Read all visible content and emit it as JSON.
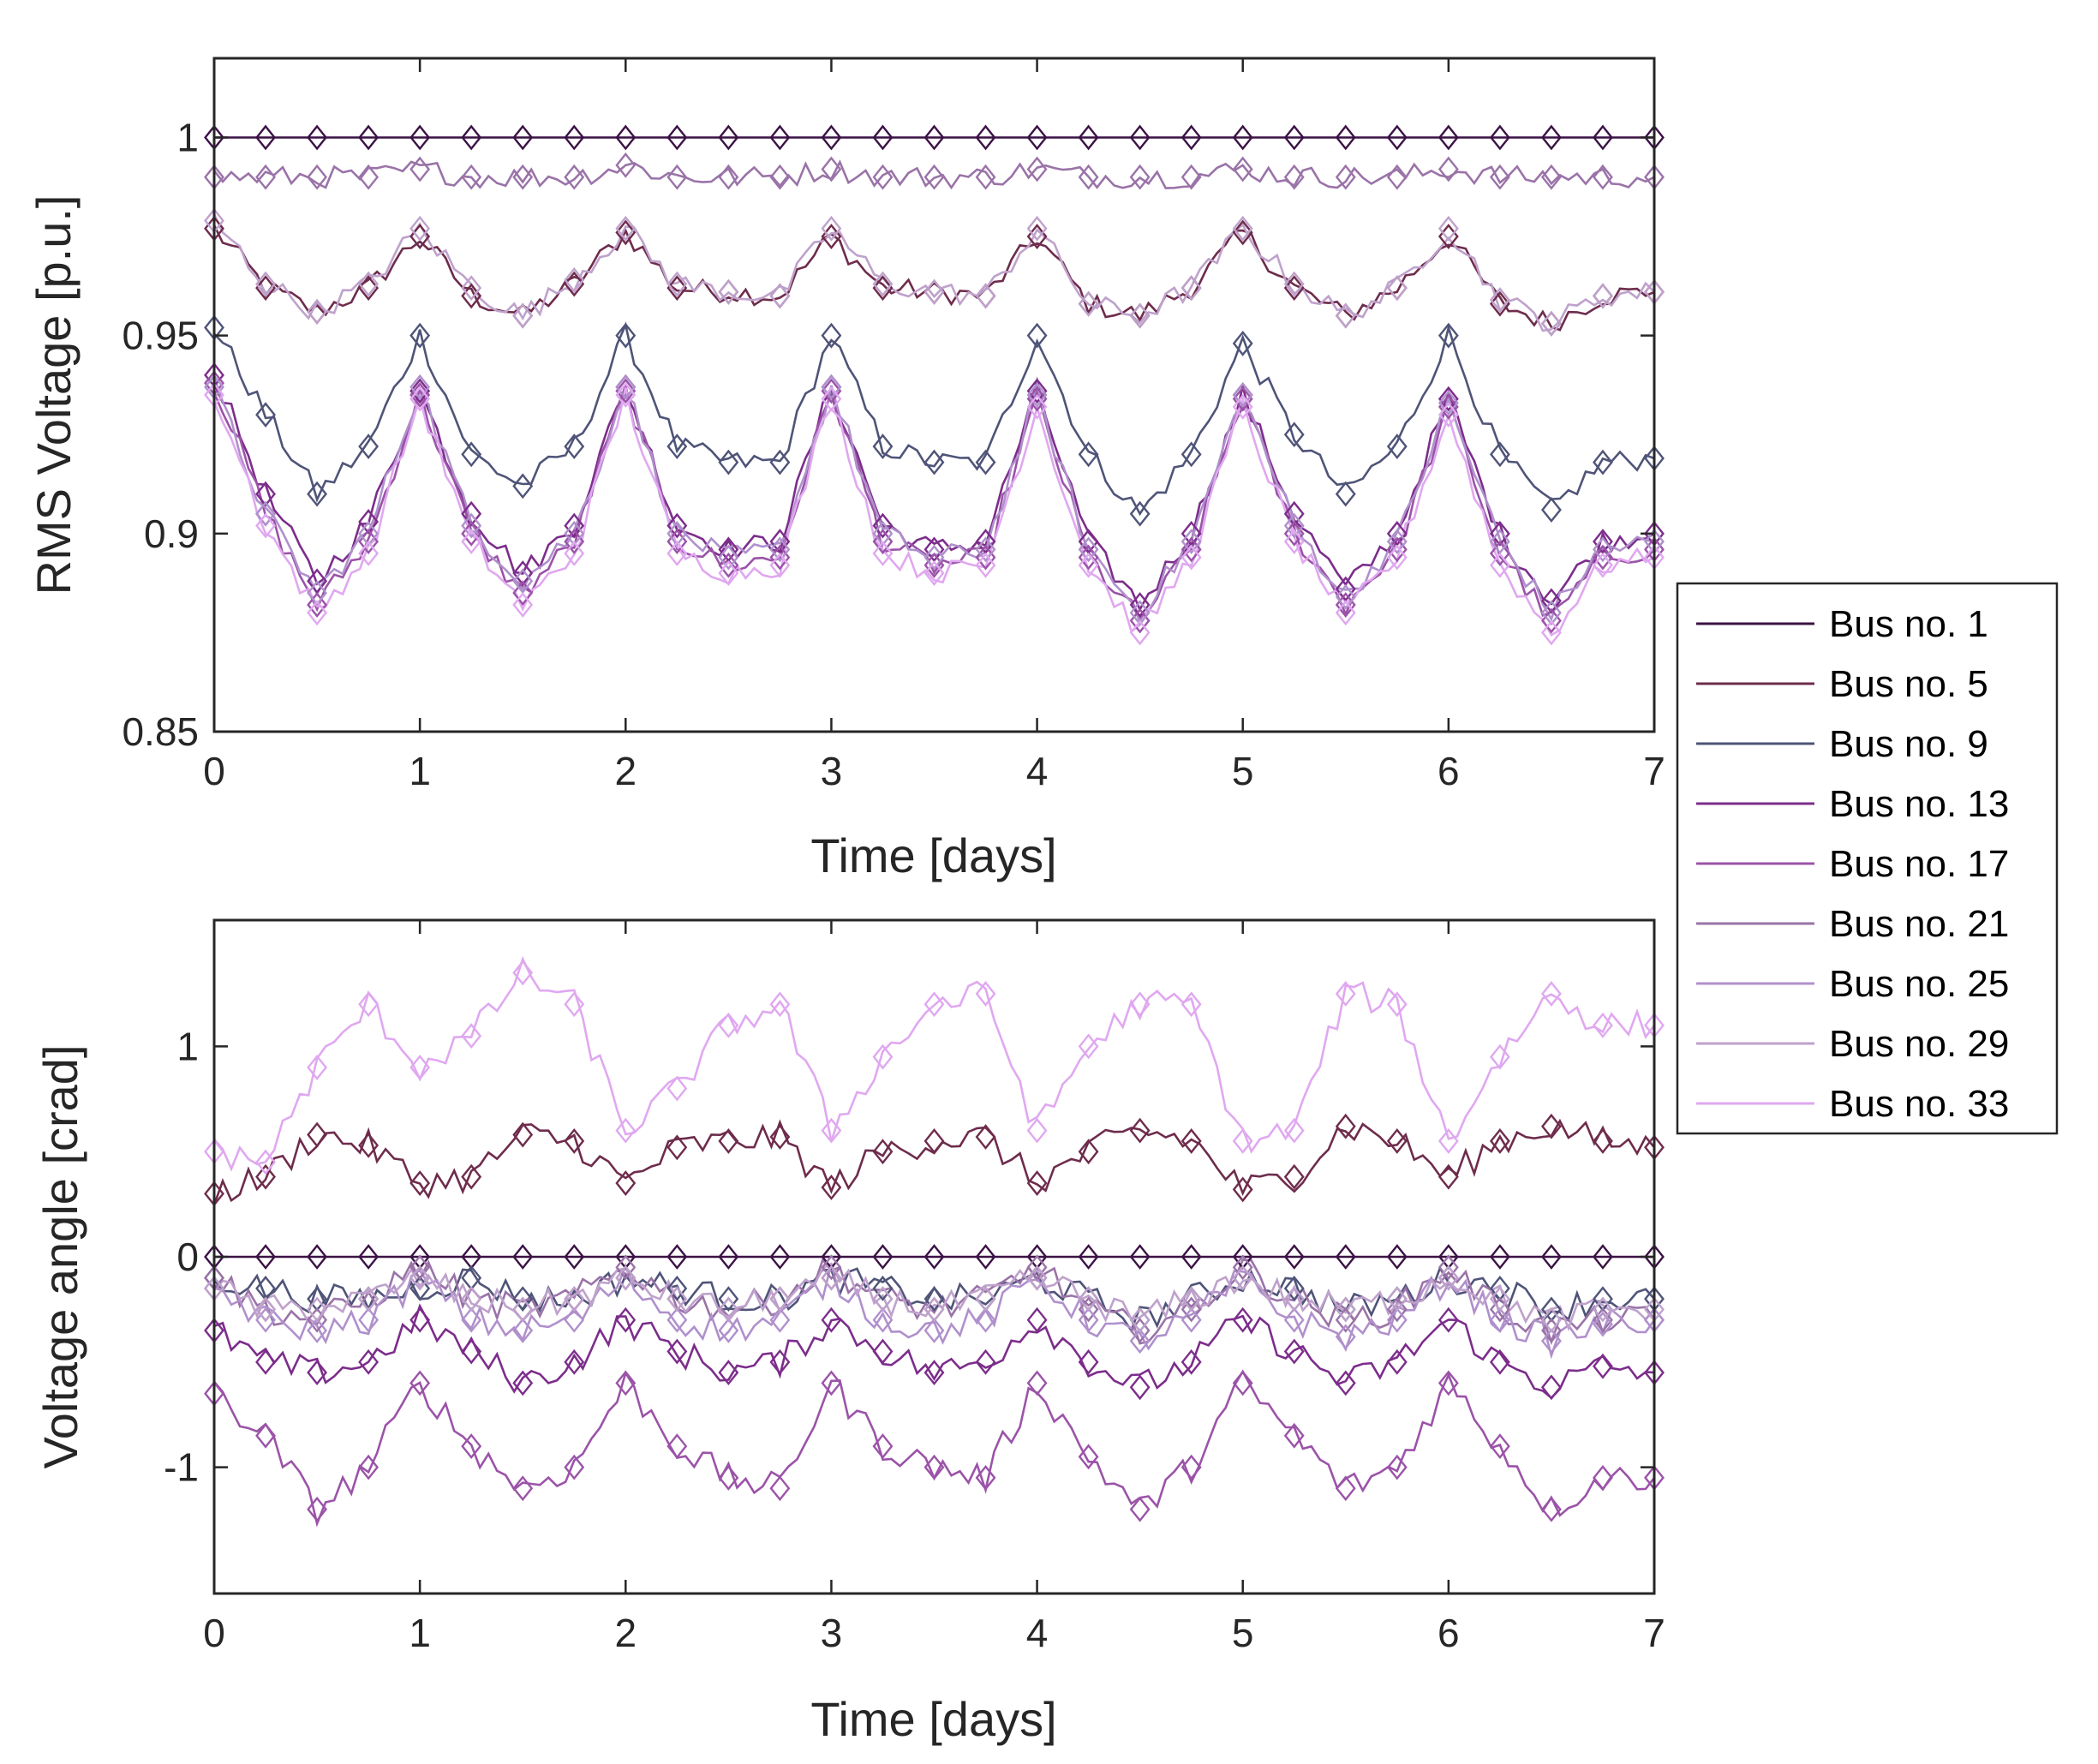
{
  "colors": {
    "bus1": "#3b1245",
    "bus5": "#6e2c4c",
    "bus9": "#4f5478",
    "bus13": "#7c2d8b",
    "bus17": "#9b53a8",
    "bus21": "#9a73a8",
    "bus25": "#b090cc",
    "bus29": "#bfa2cc",
    "bus33": "#e0a8f0"
  },
  "legend": {
    "entries": [
      "Bus no. 1",
      "Bus no. 5",
      "Bus no. 9",
      "Bus no. 13",
      "Bus no. 17",
      "Bus no. 21",
      "Bus no. 25",
      "Bus no. 29",
      "Bus no. 33"
    ],
    "placement": "right, between the two panels"
  },
  "chart_data": [
    {
      "type": "line",
      "title": "",
      "xlabel": "Time [days]",
      "ylabel": "RMS Voltage [p.u.]",
      "xlim": [
        0,
        7
      ],
      "ylim": [
        0.85,
        1.02
      ],
      "xticks": [
        "0",
        "1",
        "2",
        "3",
        "4",
        "5",
        "6",
        "7"
      ],
      "yticks": [
        "0.85",
        "0.9",
        "0.95",
        "1"
      ],
      "ytick_values": [
        0.85,
        0.9,
        0.95,
        1.0
      ],
      "marker": "diamond",
      "series": [
        {
          "name": "Bus no. 1",
          "color_key": "bus1",
          "y": [
            1.0,
            1.0,
            1.0,
            1.0,
            1.0,
            1.0,
            1.0,
            1.0,
            1.0,
            1.0,
            1.0,
            1.0,
            1.0,
            1.0,
            1.0,
            1.0,
            1.0,
            1.0,
            1.0,
            1.0,
            1.0,
            1.0,
            1.0,
            1.0,
            1.0,
            1.0,
            1.0,
            1.0,
            1.0
          ]
        },
        {
          "name": "Bus no. 5",
          "color_key": "bus5",
          "y": [
            0.977,
            0.962,
            0.956,
            0.962,
            0.975,
            0.96,
            0.955,
            0.963,
            0.976,
            0.962,
            0.961,
            0.96,
            0.975,
            0.962,
            0.961,
            0.96,
            0.975,
            0.958,
            0.955,
            0.962,
            0.976,
            0.962,
            0.955,
            0.962,
            0.975,
            0.958,
            0.953,
            0.96,
            0.961
          ]
        },
        {
          "name": "Bus no. 9",
          "color_key": "bus9",
          "y": [
            0.952,
            0.93,
            0.91,
            0.922,
            0.95,
            0.92,
            0.912,
            0.922,
            0.95,
            0.922,
            0.918,
            0.918,
            0.95,
            0.922,
            0.918,
            0.918,
            0.95,
            0.92,
            0.905,
            0.92,
            0.948,
            0.925,
            0.91,
            0.922,
            0.95,
            0.92,
            0.906,
            0.918,
            0.919
          ]
        },
        {
          "name": "Bus no. 13",
          "color_key": "bus13",
          "y": [
            0.94,
            0.91,
            0.888,
            0.903,
            0.936,
            0.905,
            0.89,
            0.902,
            0.937,
            0.902,
            0.896,
            0.898,
            0.937,
            0.902,
            0.896,
            0.898,
            0.936,
            0.898,
            0.882,
            0.9,
            0.935,
            0.905,
            0.886,
            0.9,
            0.934,
            0.9,
            0.883,
            0.898,
            0.9
          ]
        },
        {
          "name": "Bus no. 17",
          "color_key": "bus17",
          "y": [
            0.938,
            0.905,
            0.882,
            0.898,
            0.935,
            0.9,
            0.885,
            0.898,
            0.936,
            0.898,
            0.892,
            0.894,
            0.936,
            0.898,
            0.892,
            0.894,
            0.934,
            0.894,
            0.878,
            0.896,
            0.934,
            0.9,
            0.882,
            0.896,
            0.932,
            0.895,
            0.878,
            0.894,
            0.896
          ]
        },
        {
          "name": "Bus no. 21",
          "color_key": "bus21",
          "y": [
            0.99,
            0.99,
            0.99,
            0.99,
            0.992,
            0.99,
            0.99,
            0.99,
            0.993,
            0.99,
            0.99,
            0.99,
            0.992,
            0.99,
            0.99,
            0.99,
            0.992,
            0.99,
            0.99,
            0.99,
            0.992,
            0.99,
            0.99,
            0.99,
            0.992,
            0.99,
            0.99,
            0.99,
            0.99
          ]
        },
        {
          "name": "Bus no. 25",
          "color_key": "bus25",
          "y": [
            0.937,
            0.905,
            0.885,
            0.9,
            0.937,
            0.902,
            0.888,
            0.9,
            0.937,
            0.9,
            0.894,
            0.896,
            0.937,
            0.9,
            0.894,
            0.896,
            0.935,
            0.896,
            0.88,
            0.898,
            0.935,
            0.902,
            0.884,
            0.898,
            0.933,
            0.898,
            0.88,
            0.896,
            0.898
          ]
        },
        {
          "name": "Bus no. 29",
          "color_key": "bus29",
          "y": [
            0.979,
            0.963,
            0.956,
            0.963,
            0.977,
            0.962,
            0.955,
            0.964,
            0.977,
            0.963,
            0.961,
            0.96,
            0.977,
            0.963,
            0.961,
            0.96,
            0.977,
            0.958,
            0.955,
            0.962,
            0.977,
            0.963,
            0.955,
            0.962,
            0.977,
            0.959,
            0.953,
            0.96,
            0.961
          ]
        },
        {
          "name": "Bus no. 33",
          "color_key": "bus33",
          "y": [
            0.935,
            0.902,
            0.88,
            0.895,
            0.934,
            0.898,
            0.882,
            0.895,
            0.935,
            0.895,
            0.89,
            0.892,
            0.934,
            0.895,
            0.89,
            0.892,
            0.932,
            0.892,
            0.875,
            0.894,
            0.932,
            0.898,
            0.88,
            0.894,
            0.93,
            0.892,
            0.875,
            0.892,
            0.894
          ]
        }
      ]
    },
    {
      "type": "line",
      "title": "",
      "xlabel": "Time [days]",
      "ylabel": "Voltage angle [crad]",
      "xlim": [
        0,
        7
      ],
      "ylim": [
        -1.6,
        1.6
      ],
      "xticks": [
        "0",
        "1",
        "2",
        "3",
        "4",
        "5",
        "6",
        "7"
      ],
      "yticks": [
        "-1",
        "0",
        "1"
      ],
      "ytick_values": [
        -1,
        0,
        1
      ],
      "marker": "diamond",
      "series": [
        {
          "name": "Bus no. 1",
          "color_key": "bus1",
          "y": [
            0,
            0,
            0,
            0,
            0,
            0,
            0,
            0,
            0,
            0,
            0,
            0,
            0,
            0,
            0,
            0,
            0,
            0,
            0,
            0,
            0,
            0,
            0,
            0,
            0,
            0,
            0,
            0,
            0
          ]
        },
        {
          "name": "Bus no. 5",
          "color_key": "bus5",
          "y": [
            0.3,
            0.38,
            0.58,
            0.53,
            0.35,
            0.38,
            0.58,
            0.55,
            0.35,
            0.52,
            0.55,
            0.57,
            0.33,
            0.5,
            0.55,
            0.57,
            0.35,
            0.5,
            0.6,
            0.55,
            0.32,
            0.38,
            0.62,
            0.55,
            0.38,
            0.55,
            0.62,
            0.55,
            0.52
          ]
        },
        {
          "name": "Bus no. 9",
          "color_key": "bus9",
          "y": [
            -0.1,
            -0.15,
            -0.2,
            -0.2,
            -0.15,
            -0.1,
            -0.2,
            -0.2,
            -0.1,
            -0.15,
            -0.2,
            -0.2,
            -0.1,
            -0.15,
            -0.2,
            -0.2,
            -0.1,
            -0.2,
            -0.3,
            -0.2,
            -0.1,
            -0.15,
            -0.25,
            -0.2,
            -0.1,
            -0.15,
            -0.25,
            -0.2,
            -0.2
          ]
        },
        {
          "name": "Bus no. 13",
          "color_key": "bus13",
          "y": [
            -0.35,
            -0.5,
            -0.55,
            -0.5,
            -0.3,
            -0.45,
            -0.6,
            -0.5,
            -0.3,
            -0.45,
            -0.55,
            -0.5,
            -0.3,
            -0.45,
            -0.55,
            -0.5,
            -0.3,
            -0.5,
            -0.62,
            -0.5,
            -0.3,
            -0.45,
            -0.6,
            -0.5,
            -0.3,
            -0.5,
            -0.62,
            -0.52,
            -0.55
          ]
        },
        {
          "name": "Bus no. 17",
          "color_key": "bus17",
          "y": [
            -0.65,
            -0.85,
            -1.2,
            -1.0,
            -0.6,
            -0.9,
            -1.1,
            -1.0,
            -0.6,
            -0.9,
            -1.05,
            -1.1,
            -0.6,
            -0.9,
            -1.0,
            -1.05,
            -0.6,
            -0.95,
            -1.2,
            -1.0,
            -0.6,
            -0.85,
            -1.1,
            -1.0,
            -0.6,
            -0.9,
            -1.2,
            -1.05,
            -1.05
          ]
        },
        {
          "name": "Bus no. 21",
          "color_key": "bus21",
          "y": [
            -0.1,
            -0.25,
            -0.3,
            -0.2,
            -0.05,
            -0.2,
            -0.25,
            -0.2,
            -0.05,
            -0.2,
            -0.25,
            -0.2,
            -0.05,
            -0.2,
            -0.25,
            -0.2,
            -0.05,
            -0.25,
            -0.35,
            -0.25,
            -0.05,
            -0.2,
            -0.3,
            -0.25,
            -0.05,
            -0.25,
            -0.35,
            -0.3,
            -0.3
          ]
        },
        {
          "name": "Bus no. 25",
          "color_key": "bus25",
          "y": [
            -0.15,
            -0.3,
            -0.35,
            -0.3,
            -0.1,
            -0.3,
            -0.35,
            -0.3,
            -0.1,
            -0.3,
            -0.35,
            -0.3,
            -0.1,
            -0.3,
            -0.35,
            -0.3,
            -0.1,
            -0.3,
            -0.4,
            -0.3,
            -0.1,
            -0.3,
            -0.38,
            -0.3,
            -0.1,
            -0.3,
            -0.4,
            -0.32,
            -0.3
          ]
        },
        {
          "name": "Bus no. 29",
          "color_key": "bus29",
          "y": [
            -0.15,
            -0.25,
            -0.25,
            -0.2,
            -0.1,
            -0.2,
            -0.25,
            -0.2,
            -0.1,
            -0.2,
            -0.25,
            -0.2,
            -0.1,
            -0.2,
            -0.25,
            -0.2,
            -0.1,
            -0.2,
            -0.3,
            -0.2,
            -0.1,
            -0.2,
            -0.25,
            -0.2,
            -0.1,
            -0.2,
            -0.3,
            -0.25,
            -0.25
          ]
        },
        {
          "name": "Bus no. 33",
          "color_key": "bus33",
          "y": [
            0.5,
            0.45,
            0.9,
            1.2,
            0.9,
            1.05,
            1.35,
            1.2,
            0.6,
            0.8,
            1.1,
            1.2,
            0.6,
            0.95,
            1.2,
            1.25,
            0.6,
            1.0,
            1.2,
            1.2,
            0.55,
            0.6,
            1.25,
            1.2,
            0.55,
            0.95,
            1.25,
            1.1,
            1.1
          ]
        }
      ]
    }
  ]
}
